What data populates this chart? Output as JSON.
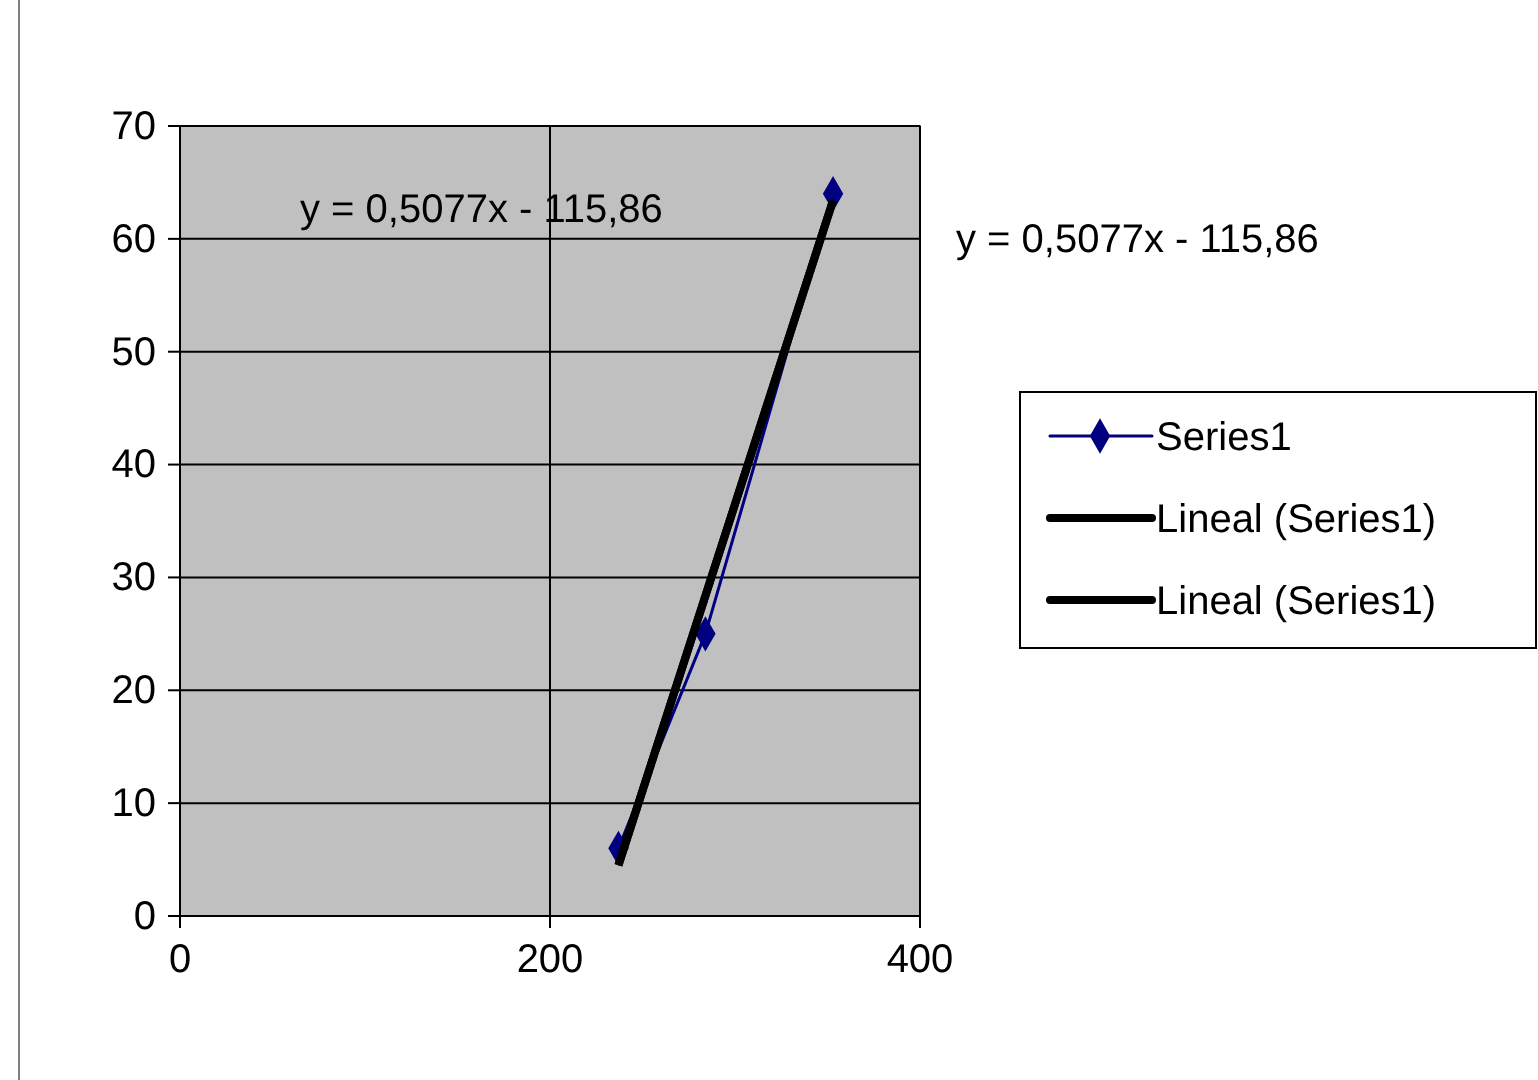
{
  "chart_data": {
    "type": "line",
    "xlim": [
      0,
      400
    ],
    "xticks": [
      0,
      200,
      400
    ],
    "ylim": [
      0,
      70
    ],
    "yticks": [
      0,
      10,
      20,
      30,
      40,
      50,
      60,
      70
    ],
    "grid": true,
    "legend": "right",
    "series": [
      {
        "name": "Series1",
        "color": "#000080",
        "marker": "diamond",
        "x": [
          237,
          284,
          353
        ],
        "values": [
          6,
          25,
          64
        ]
      },
      {
        "name": "Lineal (Series1)",
        "color": "#000000",
        "marker": "none",
        "x": [
          237,
          353
        ],
        "values": [
          4.5,
          63.4
        ]
      },
      {
        "name": "Lineal (Series1)",
        "color": "#000000",
        "marker": "none",
        "x": [
          237,
          353
        ],
        "values": [
          4.5,
          63.4
        ]
      }
    ],
    "annotations": [
      "y = 0,5077x - 115,86",
      "y = 0,5077x - 115,86"
    ]
  }
}
